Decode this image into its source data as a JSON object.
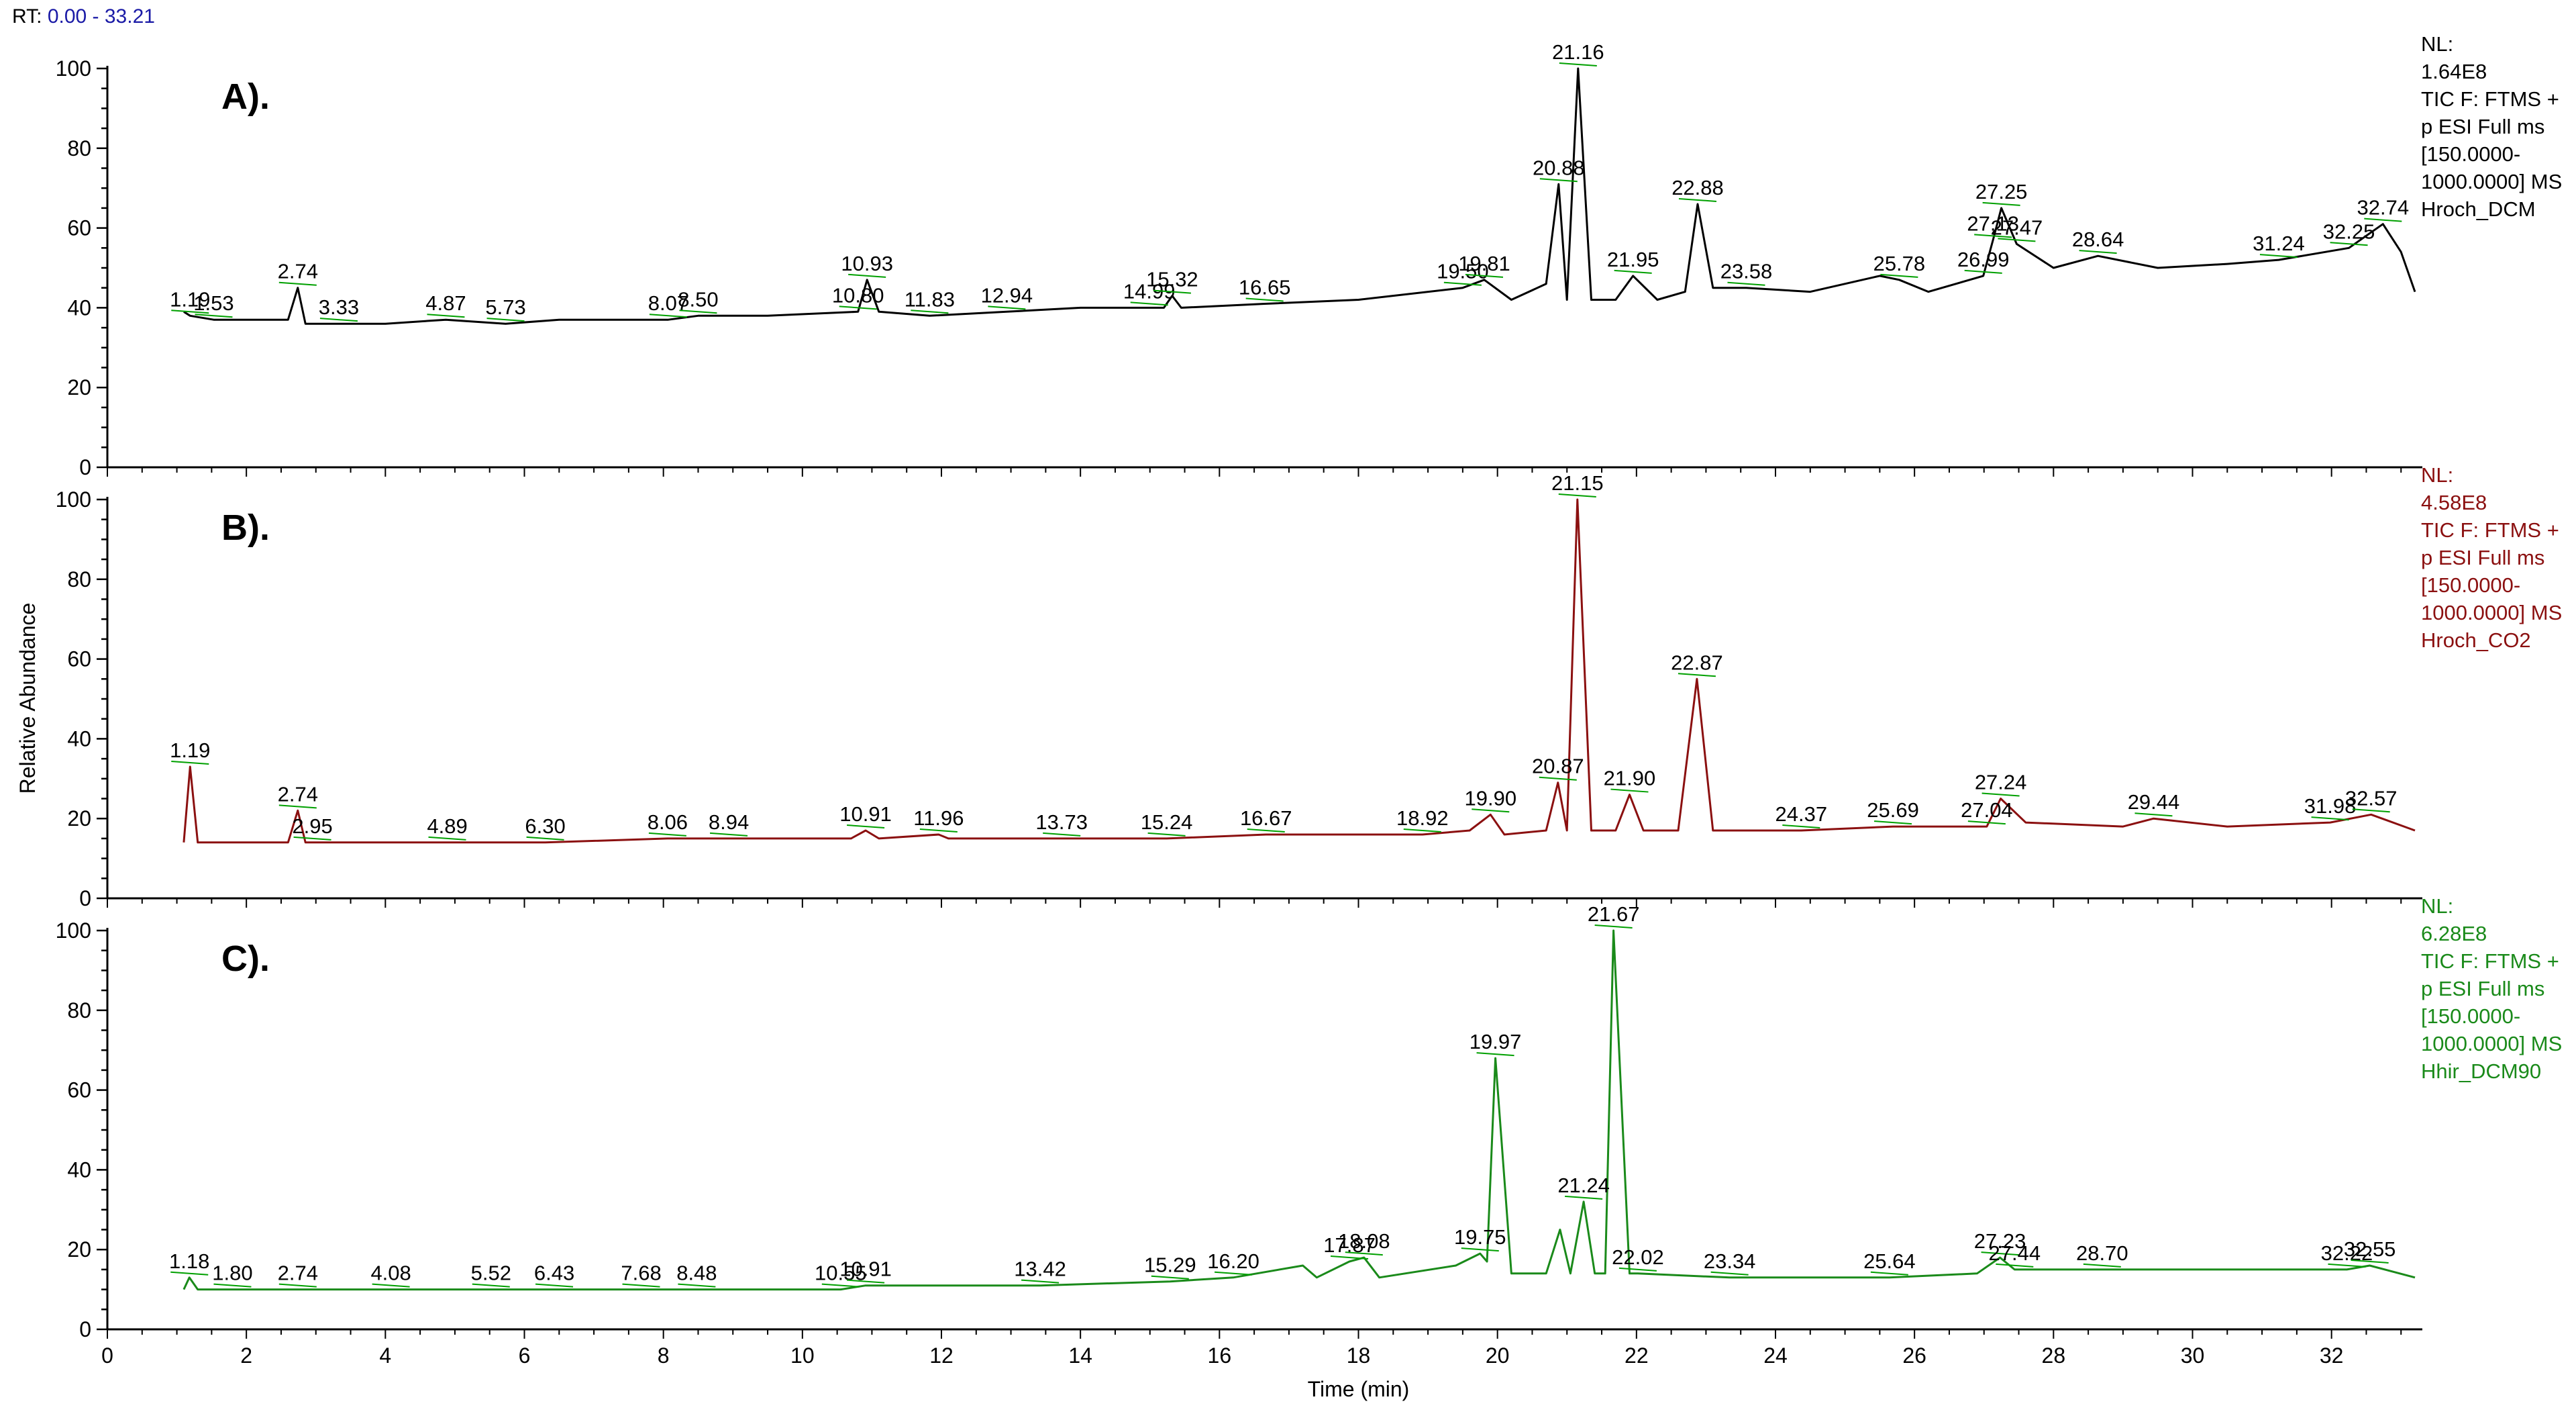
{
  "header": {
    "rt_label": "RT:",
    "rt_range": "0.00 - 33.21"
  },
  "colors": {
    "A": "#000000",
    "B": "#8b1010",
    "C": "#1a8a1a",
    "peak_line": "#00a000",
    "rt_value": "#1a1aa6"
  },
  "chart_data": {
    "type": "line",
    "xlabel": "Time (min)",
    "ylabel": "Relative Abundance",
    "xlim": [
      0,
      33.21
    ],
    "ylim": [
      0,
      100
    ],
    "x_ticks": [
      0,
      2,
      4,
      6,
      8,
      10,
      12,
      14,
      16,
      18,
      20,
      22,
      24,
      26,
      28,
      30,
      32
    ],
    "y_ticks": [
      0,
      20,
      40,
      60,
      80,
      100
    ],
    "panels": [
      {
        "id": "A",
        "panel_label": "A).",
        "color": "#000000",
        "info": [
          "NL:",
          "1.64E8",
          "TIC F: FTMS +",
          "p ESI Full ms",
          "[150.0000-",
          "1000.0000] MS",
          "Hroch_DCM"
        ],
        "series": {
          "x": [
            1.1,
            1.19,
            1.53,
            2.0,
            2.6,
            2.74,
            2.85,
            3.33,
            4.0,
            4.87,
            5.73,
            6.5,
            8.07,
            8.5,
            9.5,
            10.8,
            10.93,
            11.1,
            11.83,
            12.94,
            14.0,
            14.99,
            15.2,
            15.32,
            15.45,
            16.65,
            18.0,
            19.5,
            19.81,
            20.2,
            20.7,
            20.88,
            21.0,
            21.16,
            21.35,
            21.7,
            21.95,
            22.3,
            22.7,
            22.88,
            23.1,
            23.58,
            24.5,
            25.5,
            25.78,
            26.2,
            26.99,
            27.13,
            27.25,
            27.47,
            28.0,
            28.64,
            29.5,
            30.5,
            31.24,
            32.25,
            32.74,
            33.0,
            33.2
          ],
          "y": [
            39,
            38,
            37,
            37,
            37,
            45,
            36,
            36,
            36,
            37,
            36,
            37,
            37,
            38,
            38,
            39,
            47,
            39,
            38,
            39,
            40,
            40,
            40,
            43,
            40,
            41,
            42,
            45,
            47,
            42,
            46,
            71,
            42,
            100,
            42,
            42,
            48,
            42,
            44,
            66,
            45,
            45,
            44,
            48,
            47,
            44,
            48,
            57,
            65,
            56,
            50,
            53,
            50,
            51,
            52,
            55,
            61,
            54,
            44
          ]
        },
        "peak_labels": [
          {
            "text": "1.19",
            "x": 1.19,
            "y": 38,
            "line_to": null
          },
          {
            "text": "1.53",
            "x": 1.53,
            "y": 37,
            "line_to": null
          },
          {
            "text": "2.74",
            "x": 2.74,
            "y": 45,
            "line_to": null
          },
          {
            "text": "3.33",
            "x": 3.33,
            "y": 36,
            "line_to": null
          },
          {
            "text": "4.87",
            "x": 4.87,
            "y": 37,
            "line_to": null
          },
          {
            "text": "5.73",
            "x": 5.73,
            "y": 36,
            "line_to": null
          },
          {
            "text": "8.07",
            "x": 8.07,
            "y": 37,
            "line_to": null
          },
          {
            "text": "8.50",
            "x": 8.5,
            "y": 38,
            "line_to": null
          },
          {
            "text": "10.80",
            "x": 10.8,
            "y": 39,
            "line_to": null
          },
          {
            "text": "10.93",
            "x": 10.93,
            "y": 47,
            "line_to": null
          },
          {
            "text": "11.83",
            "x": 11.83,
            "y": 38,
            "line_to": null
          },
          {
            "text": "12.94",
            "x": 12.94,
            "y": 39,
            "line_to": null
          },
          {
            "text": "14.99",
            "x": 14.99,
            "y": 40,
            "line_to": null
          },
          {
            "text": "15.32",
            "x": 15.32,
            "y": 43,
            "line_to": null
          },
          {
            "text": "16.65",
            "x": 16.65,
            "y": 41,
            "line_to": null
          },
          {
            "text": "19.50",
            "x": 19.5,
            "y": 45,
            "line_to": null
          },
          {
            "text": "19.81",
            "x": 19.81,
            "y": 47,
            "line_to": null
          },
          {
            "text": "20.88",
            "x": 20.88,
            "y": 71,
            "line_to": null
          },
          {
            "text": "21.16",
            "x": 21.16,
            "y": 100,
            "line_to": null
          },
          {
            "text": "21.95",
            "x": 21.95,
            "y": 48,
            "line_to": null
          },
          {
            "text": "22.88",
            "x": 22.88,
            "y": 66,
            "line_to": null
          },
          {
            "text": "23.58",
            "x": 23.58,
            "y": 45,
            "line_to": null
          },
          {
            "text": "25.78",
            "x": 25.78,
            "y": 47,
            "line_to": null
          },
          {
            "text": "26.99",
            "x": 26.99,
            "y": 48,
            "line_to": null
          },
          {
            "text": "27.13",
            "x": 27.13,
            "y": 57,
            "line_to": null
          },
          {
            "text": "27.25",
            "x": 27.25,
            "y": 65,
            "line_to": null
          },
          {
            "text": "27.47",
            "x": 27.47,
            "y": 56,
            "line_to": null
          },
          {
            "text": "28.64",
            "x": 28.64,
            "y": 53,
            "line_to": null
          },
          {
            "text": "31.24",
            "x": 31.24,
            "y": 52,
            "line_to": null
          },
          {
            "text": "32.25",
            "x": 32.25,
            "y": 55,
            "line_to": null
          },
          {
            "text": "32.74",
            "x": 32.74,
            "y": 61,
            "line_to": null
          }
        ]
      },
      {
        "id": "B",
        "panel_label": "B).",
        "color": "#8b1010",
        "info": [
          "NL:",
          "4.58E8",
          "TIC F: FTMS +",
          "p ESI Full ms",
          "[150.0000-",
          "1000.0000] MS",
          "Hroch_CO2"
        ],
        "series": {
          "x": [
            1.1,
            1.19,
            1.3,
            1.8,
            2.6,
            2.74,
            2.85,
            2.95,
            4.0,
            4.89,
            6.3,
            8.06,
            8.94,
            10.7,
            10.91,
            11.1,
            11.96,
            12.1,
            13.73,
            15.24,
            16.67,
            17.5,
            18.92,
            19.6,
            19.9,
            20.1,
            20.7,
            20.87,
            21.0,
            21.15,
            21.35,
            21.7,
            21.9,
            22.1,
            22.6,
            22.87,
            23.1,
            24.37,
            25.69,
            27.04,
            27.24,
            27.6,
            29.0,
            29.44,
            30.5,
            31.98,
            32.57,
            33.2
          ],
          "y": [
            14,
            33,
            14,
            14,
            14,
            22,
            14,
            14,
            14,
            14,
            14,
            15,
            15,
            15,
            17,
            15,
            16,
            15,
            15,
            15,
            16,
            16,
            16,
            17,
            21,
            16,
            17,
            29,
            17,
            100,
            17,
            17,
            26,
            17,
            17,
            55,
            17,
            17,
            18,
            18,
            25,
            19,
            18,
            20,
            18,
            19,
            21,
            17
          ]
        },
        "peak_labels": [
          {
            "text": "1.19",
            "x": 1.19,
            "y": 33,
            "line_to": null
          },
          {
            "text": "2.74",
            "x": 2.74,
            "y": 22,
            "line_to": null
          },
          {
            "text": "2.95",
            "x": 2.95,
            "y": 14,
            "line_to": null
          },
          {
            "text": "4.89",
            "x": 4.89,
            "y": 14,
            "line_to": null
          },
          {
            "text": "6.30",
            "x": 6.3,
            "y": 14,
            "line_to": null
          },
          {
            "text": "8.06",
            "x": 8.06,
            "y": 15,
            "line_to": null
          },
          {
            "text": "8.94",
            "x": 8.94,
            "y": 15,
            "line_to": null
          },
          {
            "text": "10.91",
            "x": 10.91,
            "y": 17,
            "line_to": null
          },
          {
            "text": "11.96",
            "x": 11.96,
            "y": 16,
            "line_to": null
          },
          {
            "text": "13.73",
            "x": 13.73,
            "y": 15,
            "line_to": null
          },
          {
            "text": "15.24",
            "x": 15.24,
            "y": 15,
            "line_to": null
          },
          {
            "text": "16.67",
            "x": 16.67,
            "y": 16,
            "line_to": null
          },
          {
            "text": "18.92",
            "x": 18.92,
            "y": 16,
            "line_to": null
          },
          {
            "text": "19.90",
            "x": 19.9,
            "y": 21,
            "line_to": null
          },
          {
            "text": "20.87",
            "x": 20.87,
            "y": 29,
            "line_to": null
          },
          {
            "text": "21.15",
            "x": 21.15,
            "y": 100,
            "line_to": null
          },
          {
            "text": "21.90",
            "x": 21.9,
            "y": 26,
            "line_to": null
          },
          {
            "text": "22.87",
            "x": 22.87,
            "y": 55,
            "line_to": null
          },
          {
            "text": "24.37",
            "x": 24.37,
            "y": 17,
            "line_to": null
          },
          {
            "text": "25.69",
            "x": 25.69,
            "y": 18,
            "line_to": null
          },
          {
            "text": "27.04",
            "x": 27.04,
            "y": 18,
            "line_to": null
          },
          {
            "text": "27.24",
            "x": 27.24,
            "y": 25,
            "line_to": null
          },
          {
            "text": "29.44",
            "x": 29.44,
            "y": 20,
            "line_to": null
          },
          {
            "text": "31.98",
            "x": 31.98,
            "y": 19,
            "line_to": null
          },
          {
            "text": "32.57",
            "x": 32.57,
            "y": 21,
            "line_to": null
          }
        ]
      },
      {
        "id": "C",
        "panel_label": "C).",
        "color": "#1a8a1a",
        "info": [
          "NL:",
          "6.28E8",
          "TIC F: FTMS +",
          "p ESI Full ms",
          "[150.0000-",
          "1000.0000] MS",
          "Hhir_DCM90"
        ],
        "series": {
          "x": [
            1.1,
            1.18,
            1.3,
            1.8,
            2.74,
            4.08,
            5.52,
            6.43,
            7.68,
            8.48,
            10.55,
            10.91,
            12.5,
            13.42,
            15.29,
            16.2,
            17.2,
            17.4,
            17.87,
            18.08,
            18.3,
            19.4,
            19.75,
            19.85,
            19.97,
            20.2,
            20.7,
            20.9,
            21.05,
            21.24,
            21.4,
            21.55,
            21.67,
            21.9,
            22.02,
            23.34,
            25.64,
            26.9,
            27.23,
            27.44,
            28.7,
            30.5,
            32.22,
            32.55,
            33.2
          ],
          "y": [
            10,
            13,
            10,
            10,
            10,
            10,
            10,
            10,
            10,
            10,
            10,
            11,
            11,
            11,
            12,
            13,
            16,
            13,
            17,
            18,
            13,
            16,
            19,
            17,
            68,
            14,
            14,
            25,
            14,
            32,
            14,
            14,
            100,
            14,
            14,
            13,
            13,
            14,
            18,
            15,
            15,
            15,
            15,
            16,
            13
          ]
        },
        "peak_labels": [
          {
            "text": "1.18",
            "x": 1.18,
            "y": 13,
            "line_to": null
          },
          {
            "text": "1.80",
            "x": 1.8,
            "y": 10,
            "line_to": null
          },
          {
            "text": "2.74",
            "x": 2.74,
            "y": 10,
            "line_to": null
          },
          {
            "text": "4.08",
            "x": 4.08,
            "y": 10,
            "line_to": null
          },
          {
            "text": "5.52",
            "x": 5.52,
            "y": 10,
            "line_to": null
          },
          {
            "text": "6.43",
            "x": 6.43,
            "y": 10,
            "line_to": null
          },
          {
            "text": "7.68",
            "x": 7.68,
            "y": 10,
            "line_to": null
          },
          {
            "text": "8.48",
            "x": 8.48,
            "y": 10,
            "line_to": null
          },
          {
            "text": "10.55",
            "x": 10.55,
            "y": 10,
            "line_to": null
          },
          {
            "text": "10.91",
            "x": 10.91,
            "y": 11,
            "line_to": null
          },
          {
            "text": "13.42",
            "x": 13.42,
            "y": 11,
            "line_to": null
          },
          {
            "text": "15.29",
            "x": 15.29,
            "y": 12,
            "line_to": null
          },
          {
            "text": "16.20",
            "x": 16.2,
            "y": 13,
            "line_to": null
          },
          {
            "text": "17.87",
            "x": 17.87,
            "y": 17,
            "line_to": null
          },
          {
            "text": "18.08",
            "x": 18.08,
            "y": 18,
            "line_to": null
          },
          {
            "text": "19.75",
            "x": 19.75,
            "y": 19,
            "line_to": null
          },
          {
            "text": "19.97",
            "x": 19.97,
            "y": 68,
            "line_to": null
          },
          {
            "text": "21.24",
            "x": 21.24,
            "y": 32,
            "line_to": null
          },
          {
            "text": "21.67",
            "x": 21.67,
            "y": 100,
            "line_to": null
          },
          {
            "text": "22.02",
            "x": 22.02,
            "y": 14,
            "line_to": null
          },
          {
            "text": "23.34",
            "x": 23.34,
            "y": 13,
            "line_to": null
          },
          {
            "text": "25.64",
            "x": 25.64,
            "y": 13,
            "line_to": null
          },
          {
            "text": "27.23",
            "x": 27.23,
            "y": 18,
            "line_to": null
          },
          {
            "text": "27.44",
            "x": 27.44,
            "y": 15,
            "line_to": null
          },
          {
            "text": "28.70",
            "x": 28.7,
            "y": 15,
            "line_to": null
          },
          {
            "text": "32.22",
            "x": 32.22,
            "y": 15,
            "line_to": null
          },
          {
            "text": "32.55",
            "x": 32.55,
            "y": 16,
            "line_to": null
          }
        ]
      }
    ]
  }
}
